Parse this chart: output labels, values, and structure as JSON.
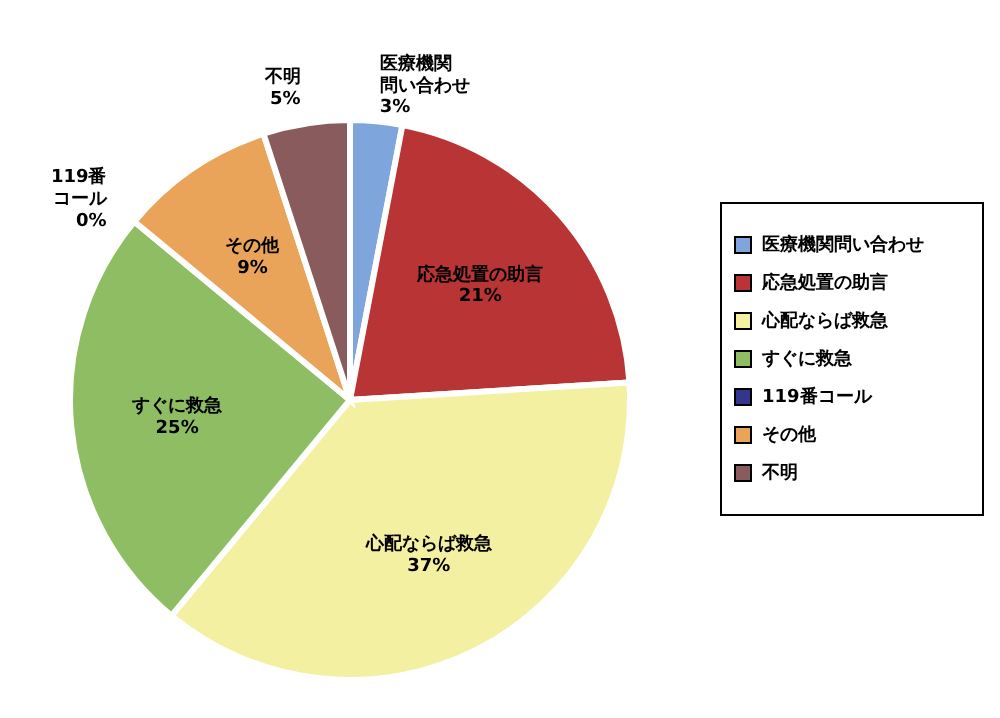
{
  "chart_data": {
    "type": "pie",
    "categories": [
      "医療機関問い合わせ",
      "応急処置の助言",
      "心配ならば救急",
      "すぐに救急",
      "119番コール",
      "その他",
      "不明"
    ],
    "values": [
      3,
      21,
      37,
      25,
      0,
      9,
      5
    ],
    "colors": [
      "#7fa6dc",
      "#b93434",
      "#f3f0a2",
      "#8fbd63",
      "#34358c",
      "#e9a45a",
      "#8a5b5c"
    ],
    "value_labels": [
      "3%",
      "21%",
      "37%",
      "25%",
      "0%",
      "9%",
      "5%"
    ],
    "legend": "right"
  }
}
